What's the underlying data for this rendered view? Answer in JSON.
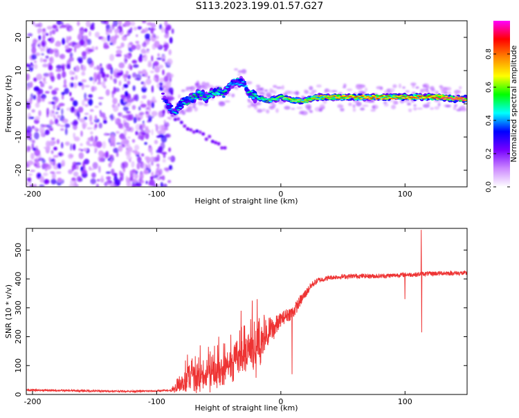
{
  "title": "S113.2023.199.01.57.G27",
  "chart_data": [
    {
      "type": "heatmap",
      "title": "S113.2023.199.01.57.G27",
      "xlabel": "Height of straight line (km)",
      "ylabel": "Frequency (Hz)",
      "xlim": [
        -205,
        150
      ],
      "ylim": [
        -25,
        25
      ],
      "xticks": [
        -200,
        -100,
        0,
        100
      ],
      "xtick_labels": [
        "-200",
        "-100",
        "0",
        "100"
      ],
      "yticks": [
        -20,
        -10,
        0,
        10,
        20
      ],
      "ytick_labels": [
        "-20",
        "-10",
        "0",
        "10",
        "20"
      ],
      "noise_region_x": [
        -205,
        -90
      ],
      "ridge": {
        "x": [
          -95,
          -90,
          -85,
          -80,
          -75,
          -70,
          -65,
          -60,
          -55,
          -50,
          -45,
          -40,
          -35,
          -30,
          -25,
          -20,
          -10,
          0,
          10,
          20,
          30,
          40,
          50,
          60,
          70,
          80,
          90,
          100,
          110,
          120,
          130,
          140,
          150
        ],
        "freq": [
          2,
          -1,
          -2.5,
          0,
          1,
          2,
          3,
          2,
          3,
          4,
          3,
          6,
          7,
          6,
          3,
          2,
          1,
          2,
          1,
          1,
          2,
          2,
          2,
          2,
          2,
          2,
          2,
          2,
          2,
          2,
          2,
          1.5,
          1.5
        ],
        "amplitude": [
          0.3,
          0.4,
          0.45,
          0.45,
          0.5,
          0.5,
          0.55,
          0.5,
          0.5,
          0.55,
          0.5,
          0.45,
          0.45,
          0.45,
          0.5,
          0.55,
          0.6,
          0.65,
          0.7,
          0.75,
          0.75,
          0.8,
          0.85,
          0.85,
          0.85,
          0.85,
          0.85,
          0.85,
          0.9,
          0.9,
          0.95,
          1.0,
          1.0
        ]
      },
      "secondary_branch": {
        "x": [
          -90,
          -80,
          -70,
          -60,
          -50,
          -45
        ],
        "freq": [
          -3,
          -6,
          -8,
          -10,
          -12,
          -14
        ]
      },
      "colorbar": {
        "label": "Normalized spectral amplitude",
        "range": [
          0,
          1
        ],
        "ticks": [
          0.0,
          0.2,
          0.4,
          0.6,
          0.8
        ],
        "tick_labels": [
          "0.0",
          "0.2",
          "0.4",
          "0.6",
          "0.8"
        ],
        "colors": [
          "#ffffff",
          "#cc88ff",
          "#7700ff",
          "#0000ff",
          "#00ffff",
          "#00ff00",
          "#ffff00",
          "#ff8800",
          "#ff0000",
          "#ff00ff"
        ]
      }
    },
    {
      "type": "line",
      "xlabel": "Height of straight line (km)",
      "ylabel": "SNR (10 * v/v)",
      "xlim": [
        -205,
        150
      ],
      "ylim": [
        0,
        575
      ],
      "xticks": [
        -200,
        -100,
        0,
        100
      ],
      "xtick_labels": [
        "-200",
        "-100",
        "0",
        "100"
      ],
      "yticks": [
        0,
        100,
        200,
        300,
        400,
        500
      ],
      "ytick_labels": [
        "0",
        "100",
        "200",
        "300",
        "400",
        "500"
      ],
      "color": "#ee3333",
      "series": [
        {
          "name": "SNR",
          "x": [
            -205,
            -180,
            -150,
            -120,
            -100,
            -90,
            -85,
            -80,
            -75,
            -70,
            -65,
            -60,
            -55,
            -50,
            -45,
            -40,
            -35,
            -30,
            -25,
            -20,
            -15,
            -10,
            -5,
            0,
            5,
            10,
            15,
            20,
            25,
            30,
            40,
            50,
            60,
            70,
            80,
            90,
            100,
            110,
            113,
            120,
            130,
            140,
            150
          ],
          "y": [
            15,
            14,
            12,
            11,
            12,
            14,
            25,
            50,
            80,
            75,
            70,
            90,
            85,
            100,
            110,
            130,
            150,
            160,
            170,
            155,
            200,
            220,
            230,
            260,
            275,
            285,
            320,
            350,
            380,
            395,
            405,
            408,
            410,
            410,
            410,
            412,
            415,
            415,
            418,
            418,
            420,
            420,
            420
          ],
          "noise_amp": [
            4,
            4,
            4,
            4,
            4,
            4,
            20,
            50,
            70,
            80,
            80,
            80,
            80,
            80,
            80,
            90,
            100,
            110,
            110,
            100,
            80,
            60,
            50,
            30,
            30,
            30,
            25,
            20,
            15,
            12,
            10,
            10,
            10,
            10,
            10,
            10,
            10,
            10,
            10,
            10,
            10,
            10,
            10
          ],
          "spikes": [
            {
              "x": -65,
              "y": 170
            },
            {
              "x": -50,
              "y": 200
            },
            {
              "x": -32,
              "y": 290
            },
            {
              "x": -23,
              "y": 325
            },
            {
              "x": -19,
              "y": 330
            },
            {
              "x": 9,
              "y": 70
            },
            {
              "x": 100,
              "y": 330
            },
            {
              "x": 113,
              "y": 570
            },
            {
              "x": 113.5,
              "y": 215
            }
          ]
        }
      ]
    }
  ]
}
